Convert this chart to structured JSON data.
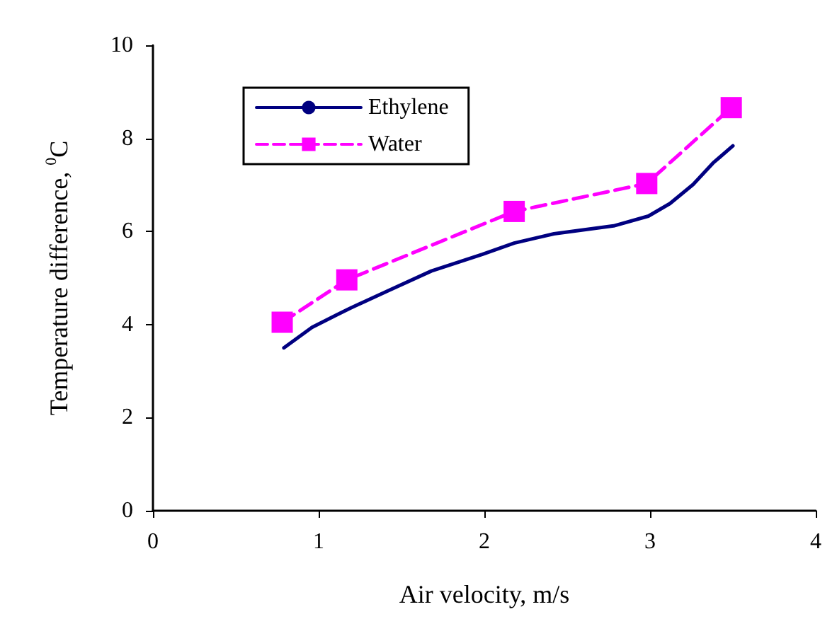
{
  "chart_data": {
    "type": "line",
    "xlabel": "Air velocity, m/s",
    "ylabel": "Temperature difference, $^{0}$C",
    "xlim": [
      0,
      4
    ],
    "xticks": [
      0,
      1,
      2,
      3,
      4
    ],
    "ylim": [
      0,
      10
    ],
    "yticks": [
      0,
      2,
      4,
      6,
      8,
      10
    ],
    "grid": false,
    "legend": "top left",
    "series": [
      {
        "name": "Ethylene",
        "color": "#000080",
        "marker": "none",
        "line_style": "solid",
        "x": [
          0.79,
          0.96,
          1.11,
          1.19,
          1.41,
          1.68,
          1.99,
          2.18,
          2.42,
          2.78,
          2.99,
          3.12,
          3.26,
          3.38,
          3.5
        ],
        "values": [
          3.5,
          3.94,
          4.21,
          4.35,
          4.71,
          5.15,
          5.51,
          5.75,
          5.95,
          6.12,
          6.33,
          6.6,
          7.01,
          7.47,
          7.84
        ]
      },
      {
        "name": "Water",
        "color": "#ff00ff",
        "marker": "square",
        "line_style": "dashed",
        "x": [
          0.78,
          1.17,
          2.18,
          2.98,
          3.49
        ],
        "values": [
          4.05,
          4.96,
          6.43,
          7.03,
          8.66
        ]
      }
    ]
  }
}
